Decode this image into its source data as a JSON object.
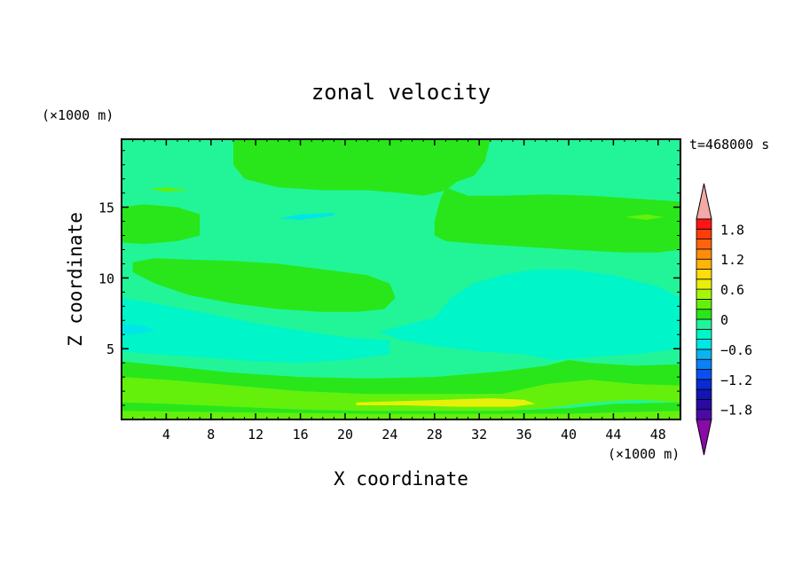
{
  "chart_data": {
    "type": "heatmap",
    "title": "zonal velocity",
    "xlabel": "X coordinate",
    "ylabel": "Z coordinate",
    "x_unit": "(×1000 m)",
    "y_unit": "(×1000 m)",
    "time_label": "t=468000 s",
    "xlim": [
      0,
      50
    ],
    "ylim": [
      0,
      19.8
    ],
    "x_ticks": [
      4,
      8,
      12,
      16,
      20,
      24,
      28,
      32,
      36,
      40,
      44,
      48
    ],
    "y_ticks": [
      5,
      10,
      15
    ],
    "colorbar": {
      "levels": [
        -2.0,
        -1.8,
        -1.6,
        -1.4,
        -1.2,
        -1.0,
        -0.8,
        -0.6,
        -0.4,
        -0.2,
        0.0,
        0.2,
        0.4,
        0.6,
        0.8,
        1.0,
        1.2,
        1.4,
        1.6,
        1.8,
        2.0
      ],
      "colors": [
        "#4b0aa8",
        "#2a0aa0",
        "#1414b4",
        "#0a2ad2",
        "#0a50f0",
        "#0a82f5",
        "#0ab4f0",
        "#00e6e6",
        "#00f5c8",
        "#22f598",
        "#28e61a",
        "#64f00a",
        "#a8f50a",
        "#e6f00a",
        "#ffdc0a",
        "#ffb40a",
        "#ff8c0a",
        "#ff640a",
        "#ff3c0a",
        "#ff1414"
      ],
      "under_color": "#8a0aa8",
      "over_color": "#f4a8a8",
      "tick_values": [
        -1.8,
        -1.2,
        -0.6,
        0,
        0.6,
        1.2,
        1.8
      ],
      "tick_labels": [
        "−1.8",
        "−1.2",
        "−0.6",
        "0",
        "0.6",
        "1.2",
        "1.8"
      ]
    },
    "field_regions": [
      {
        "value": 0.05,
        "desc": "upper green column",
        "polygon": [
          [
            10,
            19.8
          ],
          [
            10,
            18
          ],
          [
            11,
            17
          ],
          [
            14,
            16.4
          ],
          [
            18,
            16.2
          ],
          [
            22,
            16.2
          ],
          [
            25,
            16
          ],
          [
            27,
            15.8
          ],
          [
            29,
            16.2
          ],
          [
            30,
            16.8
          ],
          [
            31.5,
            17.2
          ],
          [
            32.5,
            18.2
          ],
          [
            33,
            19.8
          ]
        ]
      },
      {
        "value": 0.05,
        "desc": "left green band",
        "polygon": [
          [
            0,
            15
          ],
          [
            2,
            15.2
          ],
          [
            5,
            15
          ],
          [
            7,
            14.5
          ],
          [
            7,
            13
          ],
          [
            5,
            12.6
          ],
          [
            2,
            12.4
          ],
          [
            0,
            12.5
          ]
        ]
      },
      {
        "value": 0.05,
        "desc": "right green band",
        "polygon": [
          [
            29,
            16.4
          ],
          [
            31,
            15.8
          ],
          [
            34,
            15.8
          ],
          [
            38,
            15.9
          ],
          [
            42,
            15.8
          ],
          [
            46,
            15.6
          ],
          [
            50,
            15.4
          ],
          [
            50,
            12
          ],
          [
            48,
            11.8
          ],
          [
            45,
            11.8
          ],
          [
            40,
            12
          ],
          [
            36,
            12.2
          ],
          [
            32,
            12.4
          ],
          [
            29,
            12.6
          ],
          [
            28,
            13
          ],
          [
            28,
            14
          ],
          [
            28.5,
            15.5
          ]
        ]
      },
      {
        "value": 0.05,
        "desc": "central green lobe",
        "polygon": [
          [
            1,
            11.1
          ],
          [
            3,
            11.4
          ],
          [
            6,
            11.3
          ],
          [
            10,
            11.2
          ],
          [
            14,
            11
          ],
          [
            18,
            10.6
          ],
          [
            22,
            10.2
          ],
          [
            24,
            9.6
          ],
          [
            24.5,
            8.6
          ],
          [
            23.5,
            7.8
          ],
          [
            21,
            7.6
          ],
          [
            18,
            7.6
          ],
          [
            14,
            7.8
          ],
          [
            10,
            8.2
          ],
          [
            6,
            8.8
          ],
          [
            3,
            9.6
          ],
          [
            1,
            10.4
          ]
        ]
      },
      {
        "value": -0.25,
        "desc": "cyan wedge right",
        "polygon": [
          [
            28,
            7.2
          ],
          [
            29.5,
            8.6
          ],
          [
            31.5,
            9.6
          ],
          [
            34,
            10.2
          ],
          [
            37,
            10.6
          ],
          [
            40,
            10.6
          ],
          [
            44,
            10.2
          ],
          [
            48,
            9.4
          ],
          [
            50,
            8.6
          ],
          [
            50,
            5
          ],
          [
            46,
            4.6
          ],
          [
            42,
            4.4
          ],
          [
            38.5,
            4.2
          ],
          [
            36,
            4.6
          ],
          [
            32,
            4.8
          ],
          [
            28,
            5.2
          ],
          [
            25,
            5.6
          ],
          [
            23,
            6.2
          ]
        ]
      },
      {
        "value": -0.25,
        "desc": "cyan band left",
        "polygon": [
          [
            0,
            8.6
          ],
          [
            3,
            8.2
          ],
          [
            7,
            7.6
          ],
          [
            12,
            6.8
          ],
          [
            16,
            6.3
          ],
          [
            20,
            5.8
          ],
          [
            24,
            5.6
          ],
          [
            24,
            4.6
          ],
          [
            20,
            4.2
          ],
          [
            16,
            4.0
          ],
          [
            12,
            4.1
          ],
          [
            7,
            4.4
          ],
          [
            3,
            4.6
          ],
          [
            0,
            4.8
          ]
        ]
      },
      {
        "value": -0.45,
        "desc": "cyan streak",
        "polygon": [
          [
            14,
            14.2
          ],
          [
            16,
            14.5
          ],
          [
            19,
            14.6
          ],
          [
            19,
            14.4
          ],
          [
            16,
            14.1
          ]
        ]
      },
      {
        "value": -0.45,
        "desc": "cyan streak left",
        "polygon": [
          [
            0,
            6.8
          ],
          [
            2,
            6.6
          ],
          [
            3,
            6.3
          ],
          [
            1,
            6.0
          ],
          [
            0,
            6.1
          ]
        ]
      },
      {
        "value": 0.05,
        "desc": "green band lower",
        "polygon": [
          [
            0,
            4.1
          ],
          [
            4,
            3.8
          ],
          [
            10,
            3.3
          ],
          [
            16,
            3.0
          ],
          [
            22,
            2.9
          ],
          [
            28,
            3.0
          ],
          [
            34,
            3.4
          ],
          [
            38,
            3.8
          ],
          [
            40,
            4.2
          ],
          [
            42,
            4.0
          ],
          [
            46,
            3.8
          ],
          [
            50,
            3.9
          ],
          [
            50,
            2.4
          ],
          [
            46,
            2.5
          ],
          [
            42,
            2.8
          ],
          [
            38,
            2.5
          ],
          [
            34,
            1.8
          ],
          [
            28,
            1.8
          ],
          [
            22,
            1.8
          ],
          [
            16,
            2.0
          ],
          [
            10,
            2.4
          ],
          [
            4,
            2.8
          ],
          [
            0,
            3.0
          ]
        ]
      },
      {
        "value": 0.3,
        "desc": "yellow-green band",
        "polygon": [
          [
            0,
            3.0
          ],
          [
            4,
            2.8
          ],
          [
            10,
            2.4
          ],
          [
            16,
            2.0
          ],
          [
            22,
            1.8
          ],
          [
            28,
            1.8
          ],
          [
            34,
            1.8
          ],
          [
            38,
            2.5
          ],
          [
            42,
            2.8
          ],
          [
            46,
            2.5
          ],
          [
            50,
            2.4
          ],
          [
            50,
            1.2
          ],
          [
            46,
            1.4
          ],
          [
            42,
            1.2
          ],
          [
            38,
            0.8
          ],
          [
            34,
            0.6
          ],
          [
            28,
            0.6
          ],
          [
            22,
            0.6
          ],
          [
            16,
            0.7
          ],
          [
            10,
            0.9
          ],
          [
            4,
            1.1
          ],
          [
            0,
            1.2
          ]
        ]
      },
      {
        "value": 0.05,
        "desc": "green strip bottom",
        "polygon": [
          [
            0,
            1.2
          ],
          [
            4,
            1.1
          ],
          [
            10,
            0.9
          ],
          [
            16,
            0.7
          ],
          [
            22,
            0.6
          ],
          [
            34,
            0.6
          ],
          [
            40,
            0.8
          ],
          [
            44,
            1.1
          ],
          [
            50,
            1.2
          ],
          [
            50,
            0.6
          ],
          [
            44,
            0.5
          ],
          [
            40,
            0.4
          ],
          [
            34,
            0.4
          ],
          [
            22,
            0.4
          ],
          [
            10,
            0.5
          ],
          [
            0,
            0.6
          ]
        ]
      },
      {
        "value": 0.3,
        "desc": "yellow-green bottom",
        "polygon": [
          [
            0,
            0.6
          ],
          [
            10,
            0.5
          ],
          [
            22,
            0.4
          ],
          [
            34,
            0.4
          ],
          [
            40,
            0.4
          ],
          [
            50,
            0.6
          ],
          [
            50,
            0
          ],
          [
            0,
            0
          ]
        ]
      },
      {
        "value": 0.7,
        "desc": "yellow core",
        "polygon": [
          [
            21,
            1.2
          ],
          [
            25,
            1.3
          ],
          [
            29,
            1.4
          ],
          [
            33,
            1.5
          ],
          [
            36,
            1.4
          ],
          [
            37,
            1.1
          ],
          [
            35,
            0.9
          ],
          [
            30,
            0.9
          ],
          [
            25,
            1.0
          ],
          [
            21,
            1.0
          ]
        ]
      },
      {
        "value": 0.25,
        "desc": "streak",
        "polygon": [
          [
            45,
            14.3
          ],
          [
            47,
            14.5
          ],
          [
            48.5,
            14.3
          ],
          [
            47,
            14.1
          ]
        ]
      },
      {
        "value": 0.25,
        "desc": "streak",
        "polygon": [
          [
            2.5,
            16.3
          ],
          [
            4,
            16.4
          ],
          [
            6,
            16.2
          ],
          [
            4,
            16.1
          ]
        ]
      }
    ],
    "background_value": -0.1
  }
}
